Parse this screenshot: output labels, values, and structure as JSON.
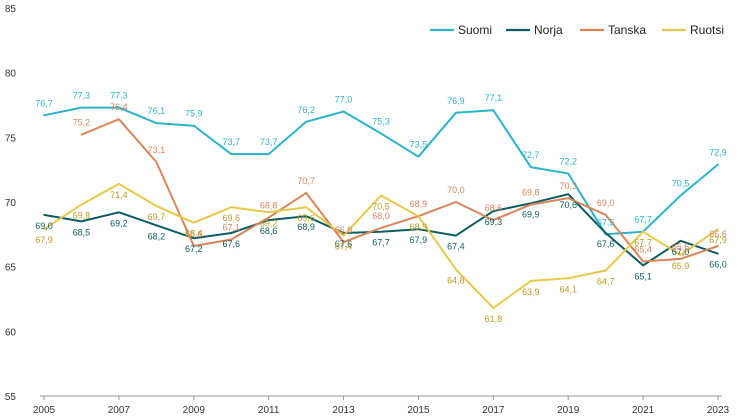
{
  "chart_data": {
    "type": "line",
    "x": [
      2005,
      2006,
      2007,
      2008,
      2009,
      2010,
      2011,
      2012,
      2013,
      2014,
      2015,
      2016,
      2017,
      2018,
      2019,
      2020,
      2021,
      2022,
      2023
    ],
    "x_tick_labels": [
      "2005",
      "2007",
      "2009",
      "2011",
      "2013",
      "2015",
      "2017",
      "2019",
      "2021",
      "2023"
    ],
    "ylim": [
      55,
      85
    ],
    "y_ticks": [
      55,
      60,
      65,
      70,
      75,
      80,
      85
    ],
    "grid": false,
    "legend_position": "top-right",
    "series": [
      {
        "name": "Suomi",
        "color": "#2bb3c9",
        "values": [
          76.7,
          77.3,
          77.3,
          76.1,
          75.9,
          73.7,
          73.7,
          76.2,
          77.0,
          75.3,
          73.5,
          76.9,
          77.1,
          72.7,
          72.2,
          67.5,
          67.7,
          70.5,
          72.9
        ],
        "labels": [
          "76,7",
          "77,3",
          "77,3",
          "76,1",
          "75,9",
          "73,7",
          "73,7",
          "76,2",
          "77,0",
          "75,3",
          "73,5",
          "76,9",
          "77,1",
          "72,7",
          "72,2",
          "67,5",
          "67,7",
          "70,5",
          "72,9"
        ]
      },
      {
        "name": "Norja",
        "color": "#0d5c63",
        "values": [
          69.0,
          68.5,
          69.2,
          68.2,
          67.2,
          67.6,
          68.6,
          68.9,
          67.6,
          67.7,
          67.9,
          67.4,
          69.3,
          69.9,
          70.6,
          67.6,
          65.1,
          67.0,
          66.0
        ],
        "labels": [
          "69,0",
          "68,5",
          "69,2",
          "68,2",
          "67,2",
          "67,6",
          "68,6",
          "68,9",
          "67,6",
          "67,7",
          "67,9",
          "67,4",
          "69,3",
          "69,9",
          "70,6",
          "67,6",
          "65,1",
          "67,0",
          "66,0"
        ]
      },
      {
        "name": "Tanska",
        "color": "#d9855c",
        "values": [
          75.2,
          76.4,
          73.1,
          66.6,
          67.1,
          68.8,
          70.7,
          66.9,
          68.0,
          68.9,
          70.0,
          68.6,
          69.8,
          70.3,
          69.0,
          65.4,
          65.6,
          66.6
        ],
        "x": [
          2006,
          2007,
          2008,
          2009,
          2010,
          2011,
          2012,
          2013,
          2014,
          2015,
          2016,
          2017,
          2018,
          2019,
          2020,
          2021,
          2022,
          2023
        ],
        "labels": [
          "75,2",
          "76,4",
          "73,1",
          "66,6",
          "67,1",
          "68,8",
          "70,7",
          "66,9",
          "68,0",
          "68,9",
          "70,0",
          "68,6",
          "69,8",
          "70,3",
          "69,0",
          "65,4",
          "65,6",
          "66,6"
        ]
      },
      {
        "name": "Ruotsi",
        "color": "#e8c84a",
        "values": [
          67.9,
          69.8,
          71.4,
          69.7,
          68.4,
          69.6,
          69.2,
          69.6,
          67.4,
          70.5,
          68.9,
          64.8,
          61.8,
          63.9,
          64.1,
          64.7,
          67.7,
          65.9,
          67.9
        ],
        "labels": [
          "67,9",
          "69,8",
          "71,4",
          "69,7",
          "68,4",
          "69,6",
          "69,2",
          "69,6",
          "67,4",
          "70,5",
          "68,9",
          "64,8",
          "61,8",
          "63,9",
          "64,1",
          "64,7",
          "67,7",
          "65,9",
          "67,9"
        ]
      }
    ]
  }
}
